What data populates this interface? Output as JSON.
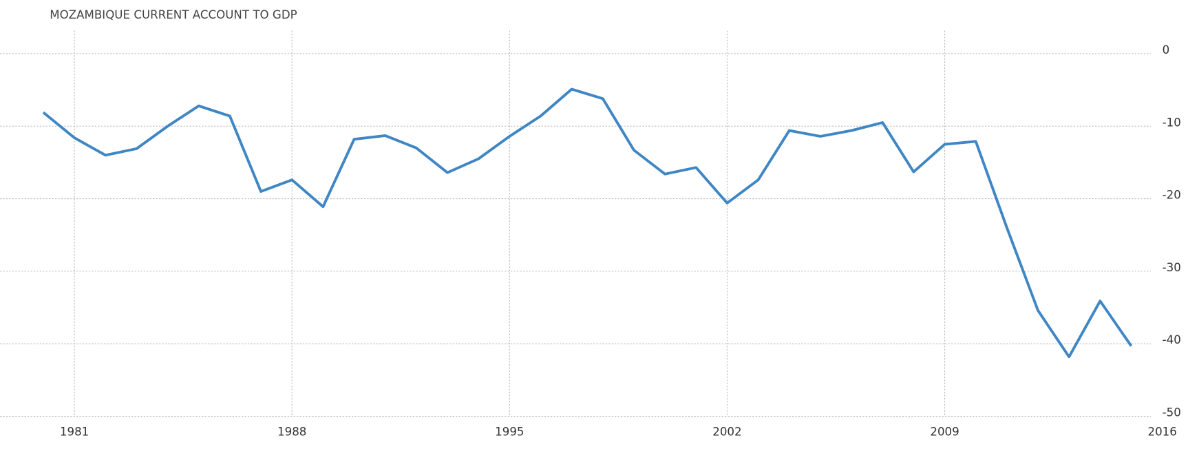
{
  "chart_data": {
    "type": "line",
    "title": "MOZAMBIQUE CURRENT ACCOUNT TO GDP",
    "x": [
      1980,
      1981,
      1982,
      1983,
      1984,
      1985,
      1986,
      1987,
      1988,
      1989,
      1990,
      1991,
      1992,
      1993,
      1994,
      1995,
      1996,
      1997,
      1998,
      1999,
      2000,
      2001,
      2002,
      2003,
      2004,
      2005,
      2006,
      2007,
      2008,
      2009,
      2010,
      2011,
      2012,
      2013,
      2014,
      2015
    ],
    "series": [
      {
        "name": "Current Account to GDP",
        "color": "#3f86c4",
        "values": [
          -8.1,
          -11.6,
          -14,
          -13.1,
          -10,
          -7.2,
          -8.6,
          -19,
          -17.4,
          -21.1,
          -11.8,
          -11.3,
          -13,
          -16.4,
          -14.5,
          -11.4,
          -8.6,
          -4.9,
          -6.2,
          -13.3,
          -16.6,
          -15.7,
          -20.6,
          -17.4,
          -10.6,
          -11.4,
          -10.6,
          -9.5,
          -16.3,
          -12.5,
          -12.1,
          -24,
          -35.4,
          -41.8,
          -34.1,
          -40.3
        ]
      }
    ],
    "xlim": [
      1979,
      2016
    ],
    "xticks": [
      1981,
      1988,
      1995,
      2002,
      2009,
      2016
    ],
    "ylim": [
      -50,
      0
    ],
    "yticks": [
      -50,
      -40,
      -30,
      -20,
      -10,
      0
    ],
    "grid": true
  }
}
